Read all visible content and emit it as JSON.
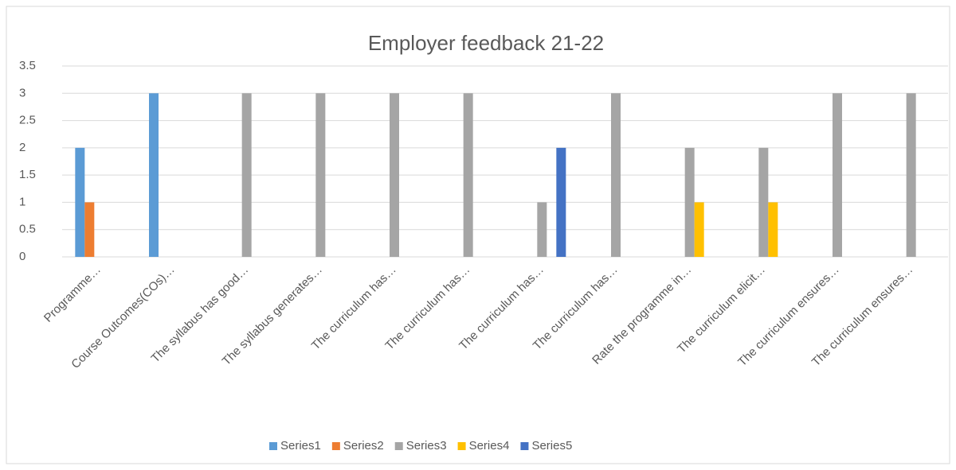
{
  "chart_data": {
    "type": "bar",
    "title": "Employer feedback 21-22",
    "categories": [
      "Programme…",
      "Course Outcomes(COs)…",
      "The syllabus has good…",
      "The syllabus generates…",
      "The curriculum has…",
      "The curriculum has…",
      "The curriculum has…",
      "The curriculum has…",
      "Rate the programme in…",
      "The curriculum elicit…",
      "The curriculum ensures…",
      "The curriculum ensures…"
    ],
    "series": [
      {
        "name": "Series1",
        "color": "#5b9bd5",
        "values": [
          2,
          3,
          null,
          null,
          null,
          null,
          null,
          null,
          null,
          null,
          null,
          null
        ]
      },
      {
        "name": "Series2",
        "color": "#ed7d31",
        "values": [
          1,
          null,
          null,
          null,
          null,
          null,
          null,
          null,
          null,
          null,
          null,
          null
        ]
      },
      {
        "name": "Series3",
        "color": "#a5a5a5",
        "values": [
          null,
          null,
          3,
          3,
          3,
          3,
          1,
          3,
          2,
          2,
          3,
          3
        ]
      },
      {
        "name": "Series4",
        "color": "#ffc000",
        "values": [
          null,
          null,
          null,
          null,
          null,
          null,
          null,
          null,
          1,
          1,
          null,
          null
        ]
      },
      {
        "name": "Series5",
        "color": "#4472c4",
        "values": [
          null,
          null,
          null,
          null,
          null,
          null,
          2,
          null,
          null,
          null,
          null,
          null
        ]
      }
    ],
    "ylim": [
      0,
      3.5
    ],
    "yticks": [
      0,
      0.5,
      1,
      1.5,
      2,
      2.5,
      3,
      3.5
    ],
    "grid": true,
    "legend": "bottom"
  }
}
